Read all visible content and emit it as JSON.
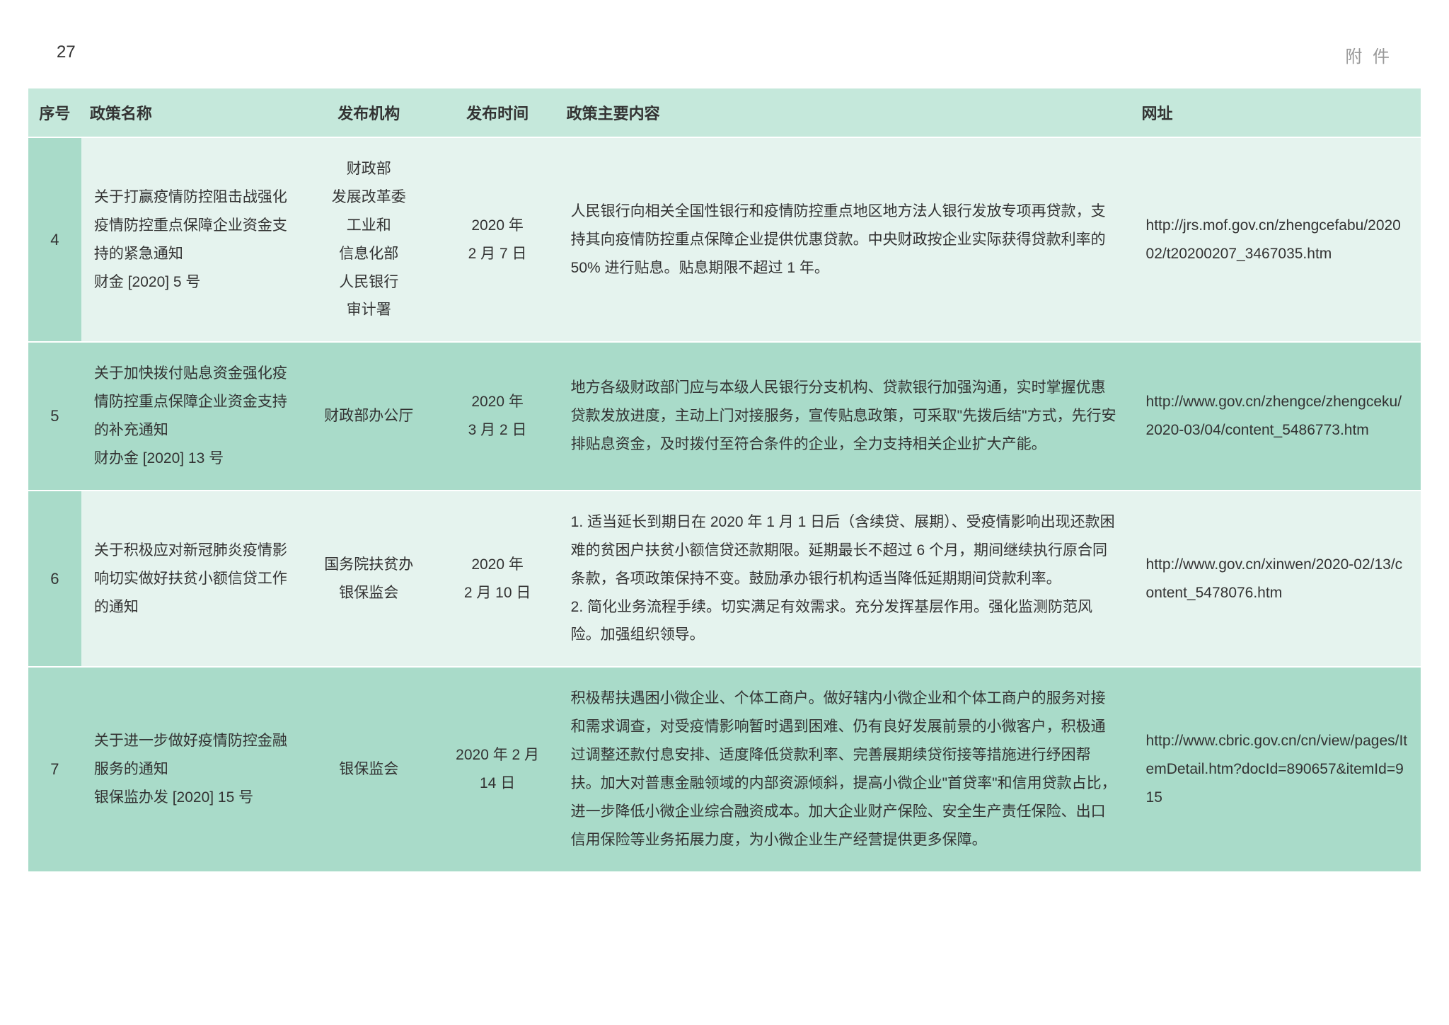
{
  "page": {
    "number": "27",
    "section": "附 件"
  },
  "table": {
    "columns": [
      "序号",
      "政策名称",
      "发布机构",
      "发布时间",
      "政策主要内容",
      "网址"
    ],
    "rows": [
      {
        "seq": "4",
        "name": "关于打赢疫情防控阻击战强化疫情防控重点保障企业资金支持的紧急通知\n财金 [2020] 5 号",
        "org": "财政部\n发展改革委\n工业和\n信息化部\n人民银行\n审计署",
        "date": "2020 年\n2 月 7 日",
        "content": "人民银行向相关全国性银行和疫情防控重点地区地方法人银行发放专项再贷款，支持其向疫情防控重点保障企业提供优惠贷款。中央财政按企业实际获得贷款利率的 50% 进行贴息。贴息期限不超过 1 年。",
        "url": "http://jrs.mof.gov.cn/zhengcefabu/202002/t20200207_3467035.htm",
        "bg": "light"
      },
      {
        "seq": "5",
        "name": "关于加快拨付贴息资金强化疫情防控重点保障企业资金支持的补充通知\n财办金 [2020] 13 号",
        "org": "财政部办公厅",
        "date": "2020 年\n3 月 2 日",
        "content": "地方各级财政部门应与本级人民银行分支机构、贷款银行加强沟通，实时掌握优惠贷款发放进度，主动上门对接服务，宣传贴息政策，可采取\"先拨后结\"方式，先行安排贴息资金，及时拨付至符合条件的企业，全力支持相关企业扩大产能。",
        "url": "http://www.gov.cn/zhengce/zhengceku/2020-03/04/content_5486773.htm",
        "bg": "dark"
      },
      {
        "seq": "6",
        "name": "关于积极应对新冠肺炎疫情影响切实做好扶贫小额信贷工作的通知",
        "org": "国务院扶贫办\n银保监会",
        "date": "2020 年\n2 月 10 日",
        "content": "1. 适当延长到期日在 2020 年 1 月 1 日后（含续贷、展期）、受疫情影响出现还款困难的贫困户扶贫小额信贷还款期限。延期最长不超过 6 个月，期间继续执行原合同条款，各项政策保持不变。鼓励承办银行机构适当降低延期期间贷款利率。\n2. 简化业务流程手续。切实满足有效需求。充分发挥基层作用。强化监测防范风险。加强组织领导。",
        "url": "http://www.gov.cn/xinwen/2020-02/13/content_5478076.htm",
        "bg": "light"
      },
      {
        "seq": "7",
        "name": "关于进一步做好疫情防控金融服务的通知\n银保监办发 [2020] 15 号",
        "org": "银保监会",
        "date": "2020 年 2 月 14 日",
        "content": "积极帮扶遇困小微企业、个体工商户。做好辖内小微企业和个体工商户的服务对接和需求调查，对受疫情影响暂时遇到困难、仍有良好发展前景的小微客户，积极通过调整还款付息安排、适度降低贷款利率、完善展期续贷衔接等措施进行纾困帮扶。加大对普惠金融领域的内部资源倾斜，提高小微企业\"首贷率\"和信用贷款占比，进一步降低小微企业综合融资成本。加大企业财产保险、安全生产责任保险、出口信用保险等业务拓展力度，为小微企业生产经营提供更多保障。",
        "url": "http://www.cbric.gov.cn/cn/view/pages/ItemDetail.htm?docId=890657&itemId=915",
        "bg": "dark"
      }
    ]
  },
  "colors": {
    "header_bg": "#c5e8db",
    "row_light": "#e5f3ee",
    "row_dark": "#a9dbc9",
    "seq_bg": "#a9dbc9",
    "text": "#333333",
    "section_text": "#999999"
  }
}
